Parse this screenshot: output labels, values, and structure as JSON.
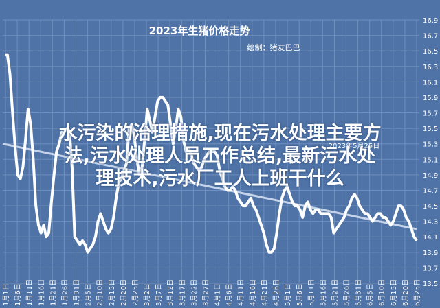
{
  "chart_data": {
    "type": "line",
    "title": "2023年生猪价格走势",
    "subtitle": "绘制：猪友巴巴",
    "annotation": "2023年5月25日",
    "xlabel": "",
    "ylabel": "",
    "ylim": [
      13.5,
      16.9
    ],
    "y_ticks": [
      "13.5",
      "13.7",
      "13.9",
      "14.1",
      "14.3",
      "14.5",
      "14.7",
      "14.9",
      "15.1",
      "15.3",
      "15.5",
      "15.7",
      "15.9",
      "16.1",
      "16.3",
      "16.5",
      "16.7",
      "16.9"
    ],
    "x_ticks": [
      "1月1日",
      "1月6日",
      "1月11日",
      "1月16日",
      "1月21日",
      "1月26日",
      "1月31日",
      "2月5日",
      "2月10日",
      "2月15日",
      "2月20日",
      "2月25日",
      "3月2日",
      "3月7日",
      "3月12日",
      "3月17日",
      "3月22日",
      "3月27日",
      "4月1日",
      "4月6日",
      "4月11日",
      "4月16日",
      "4月21日",
      "4月26日",
      "5月1日",
      "5月6日",
      "5月11日",
      "5月16日",
      "5月21日",
      "5月26日",
      "5月31日",
      "6月5日",
      "6月10日",
      "6月15日",
      "6月20日",
      "6月25日"
    ],
    "grid": true,
    "line_color": "#ffffff",
    "trend_color": "#c5d4ea",
    "series": [
      {
        "values": [
          16.45,
          16.45,
          16.2,
          15.7,
          15.25,
          14.9,
          14.85,
          15.0,
          15.35,
          15.75,
          15.55,
          15.1,
          14.5,
          14.25,
          14.15,
          14.25,
          14.1,
          14.15,
          14.55,
          14.9,
          15.2,
          15.3,
          15.45,
          15.45,
          15.5,
          15.45,
          15.0,
          14.1,
          14.05,
          14.0,
          14.05,
          14.0,
          13.9,
          13.95,
          14.0,
          14.1,
          14.3,
          14.4,
          14.3,
          14.2,
          14.15,
          14.2,
          14.35,
          14.6,
          14.8,
          14.85,
          14.95,
          15.05,
          15.5,
          15.55,
          15.4,
          15.1,
          14.9,
          15.0,
          15.35,
          15.75,
          15.6,
          15.45,
          15.65,
          15.85,
          15.9,
          15.9,
          15.85,
          15.8,
          15.55,
          15.3,
          15.5,
          15.75,
          15.65,
          15.35,
          15.2,
          15.25,
          15.15,
          15.05,
          15.0,
          14.95,
          15.0,
          15.1,
          15.15,
          15.2,
          15.2,
          15.2,
          15.15,
          14.95,
          14.85,
          14.75,
          14.7,
          14.7,
          14.75,
          14.7,
          14.6,
          14.55,
          14.5,
          14.5,
          14.55,
          14.6,
          14.5,
          14.45,
          14.35,
          14.25,
          14.15,
          14.0,
          13.9,
          13.9,
          13.95,
          14.15,
          14.4,
          14.6,
          14.7,
          14.75,
          14.65,
          14.55,
          14.5,
          14.5,
          14.45,
          14.35,
          14.5,
          14.55,
          14.45,
          14.4,
          14.45,
          14.45,
          14.4,
          14.4,
          14.4,
          14.4,
          14.35,
          14.15,
          14.2,
          14.25,
          14.3,
          14.35,
          14.45,
          14.5,
          14.6,
          14.65,
          14.6,
          14.5,
          14.45,
          14.4,
          14.4,
          14.35,
          14.3,
          14.35,
          14.4,
          14.4,
          14.35,
          14.35,
          14.3,
          14.25,
          14.3,
          14.4,
          14.5,
          14.5,
          14.45,
          14.35,
          14.3,
          14.2,
          14.1,
          14.05
        ]
      }
    ],
    "trend": [
      15.3,
      14.2
    ]
  },
  "overlay": {
    "line1": "水污染的治理措施,现在污水处理主要方",
    "line2": "法,污水处理人员工作总结,最新污水处",
    "line3": "理技术,污水厂工人上班干什么"
  }
}
